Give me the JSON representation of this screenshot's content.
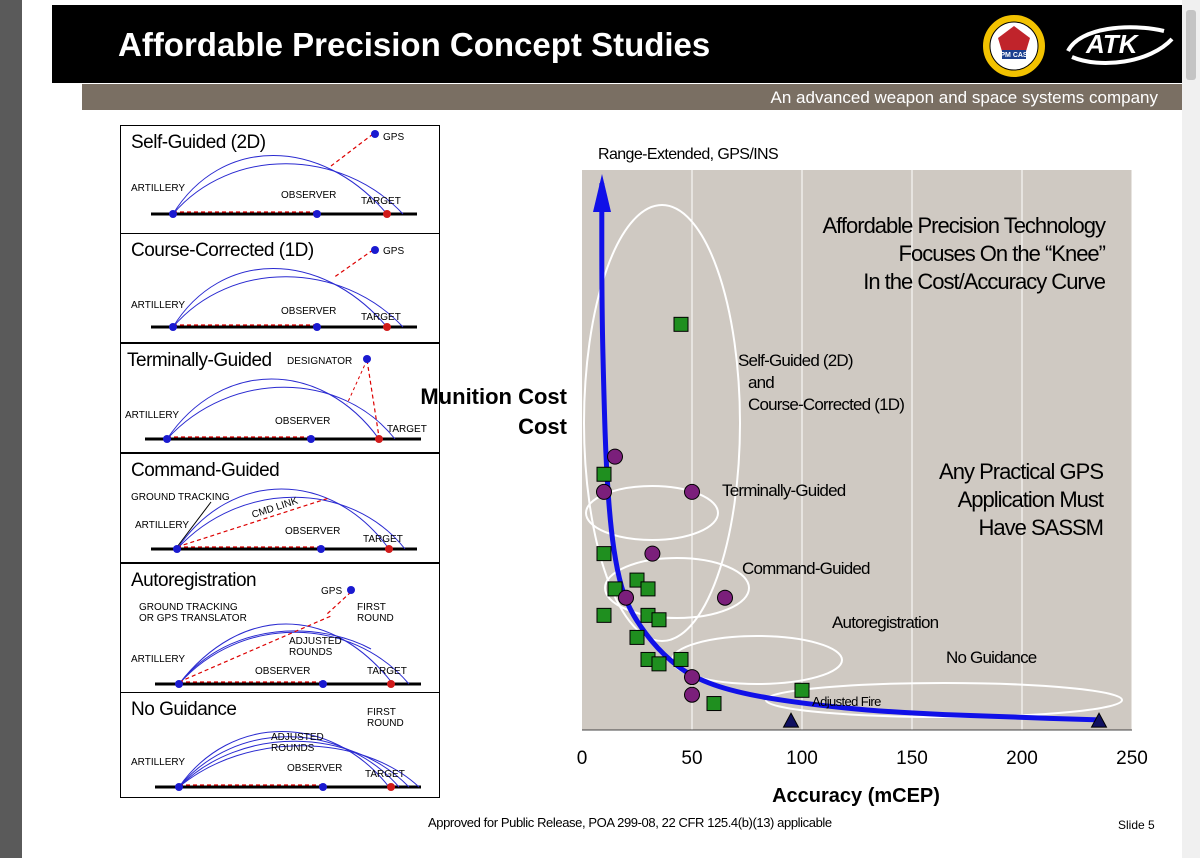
{
  "slide": {
    "title": "Affordable Precision Concept Studies",
    "tagline": "An advanced weapon and space systems company",
    "brand": "ATK",
    "seal_text": "PM CAS",
    "approval": "Approved for Public Release, POA 299-08, 22 CFR 125.4(b)(13) applicable",
    "slide_number": "Slide 5"
  },
  "panels": [
    {
      "title": "Self-Guided (2D)",
      "labels": {
        "gps": "GPS",
        "artillery": "ARTILLERY",
        "observer": "OBSERVER",
        "target": "TARGET"
      }
    },
    {
      "title": "Course-Corrected (1D)",
      "labels": {
        "gps": "GPS",
        "artillery": "ARTILLERY",
        "observer": "OBSERVER",
        "target": "TARGET"
      }
    },
    {
      "title": "Terminally-Guided",
      "labels": {
        "designator": "DESIGNATOR",
        "artillery": "ARTILLERY",
        "observer": "OBSERVER",
        "target": "TARGET"
      }
    },
    {
      "title": "Command-Guided",
      "labels": {
        "ground_tracking": "GROUND TRACKING",
        "cmd_link": "CMD LINK",
        "artillery": "ARTILLERY",
        "observer": "OBSERVER",
        "target": "TARGET"
      }
    },
    {
      "title": "Autoregistration",
      "labels": {
        "gps": "GPS",
        "ground_tracking_1": "GROUND TRACKING",
        "ground_tracking_2": "OR GPS TRANSLATOR",
        "first_1": "FIRST",
        "first_2": "ROUND",
        "adjusted_1": "ADJUSTED",
        "adjusted_2": "ROUNDS",
        "artillery": "ARTILLERY",
        "observer": "OBSERVER",
        "target": "TARGET"
      }
    },
    {
      "title": "No Guidance",
      "labels": {
        "first_1": "FIRST",
        "first_2": "ROUND",
        "adjusted_1": "ADJUSTED",
        "adjusted_2": "ROUNDS",
        "artillery": "ARTILLERY",
        "observer": "OBSERVER",
        "target": "TARGET"
      }
    }
  ],
  "chart_data": {
    "type": "scatter",
    "title": "",
    "xlabel": "Accuracy (mCEP)",
    "ylabel": "Munition Cost",
    "xlim": [
      0,
      250
    ],
    "xticks": [
      0,
      50,
      100,
      150,
      200,
      250
    ],
    "y_tick_labels": false,
    "grid": true,
    "plot_background": "#cfc9c2",
    "top_arrow_label": "Range-Extended, GPS/INS",
    "annotations": [
      "Affordable Precision Technology",
      "Focuses On the “Knee”",
      "In the Cost/Accuracy Curve",
      "Any Practical GPS",
      "Application Must",
      "Have SASSM"
    ],
    "group_labels": {
      "self_guided_1": "Self-Guided (2D)",
      "self_guided_2": "and",
      "self_guided_3": "Course-Corrected (1D)",
      "terminally": "Terminally-Guided",
      "command": "Command-Guided",
      "autoregistration": "Autoregistration",
      "no_guidance": "No Guidance",
      "adjusted_fire": "Adjusted Fire"
    },
    "curve_color": "#1010e8",
    "series": [
      {
        "marker": "square",
        "color": "#1f8f1f",
        "points": [
          [
            45,
            92
          ],
          [
            10,
            58
          ],
          [
            10,
            40
          ],
          [
            25,
            34
          ],
          [
            15,
            32
          ],
          [
            30,
            32
          ],
          [
            10,
            26
          ],
          [
            30,
            26
          ],
          [
            35,
            25
          ],
          [
            25,
            21
          ],
          [
            30,
            16
          ],
          [
            35,
            15
          ],
          [
            45,
            16
          ],
          [
            60,
            6
          ],
          [
            100,
            9
          ]
        ]
      },
      {
        "marker": "circle",
        "color": "#7b1f7b",
        "points": [
          [
            15,
            62
          ],
          [
            10,
            54
          ],
          [
            50,
            54
          ],
          [
            32,
            40
          ],
          [
            20,
            30
          ],
          [
            65,
            30
          ],
          [
            50,
            12
          ],
          [
            50,
            8
          ]
        ]
      },
      {
        "name": "Adjusted Fire",
        "marker": "triangle",
        "color": "#101060",
        "points": [
          [
            95,
            2
          ],
          [
            235,
            2
          ]
        ]
      }
    ],
    "curve": [
      [
        9,
        124
      ],
      [
        9,
        96
      ],
      [
        10,
        75
      ],
      [
        11,
        60
      ],
      [
        13,
        46
      ],
      [
        16,
        36
      ],
      [
        20,
        29
      ],
      [
        27,
        23
      ],
      [
        37,
        17
      ],
      [
        50,
        12
      ],
      [
        70,
        8.5
      ],
      [
        100,
        6
      ],
      [
        140,
        4
      ],
      [
        190,
        3
      ],
      [
        235,
        2.3
      ]
    ]
  }
}
